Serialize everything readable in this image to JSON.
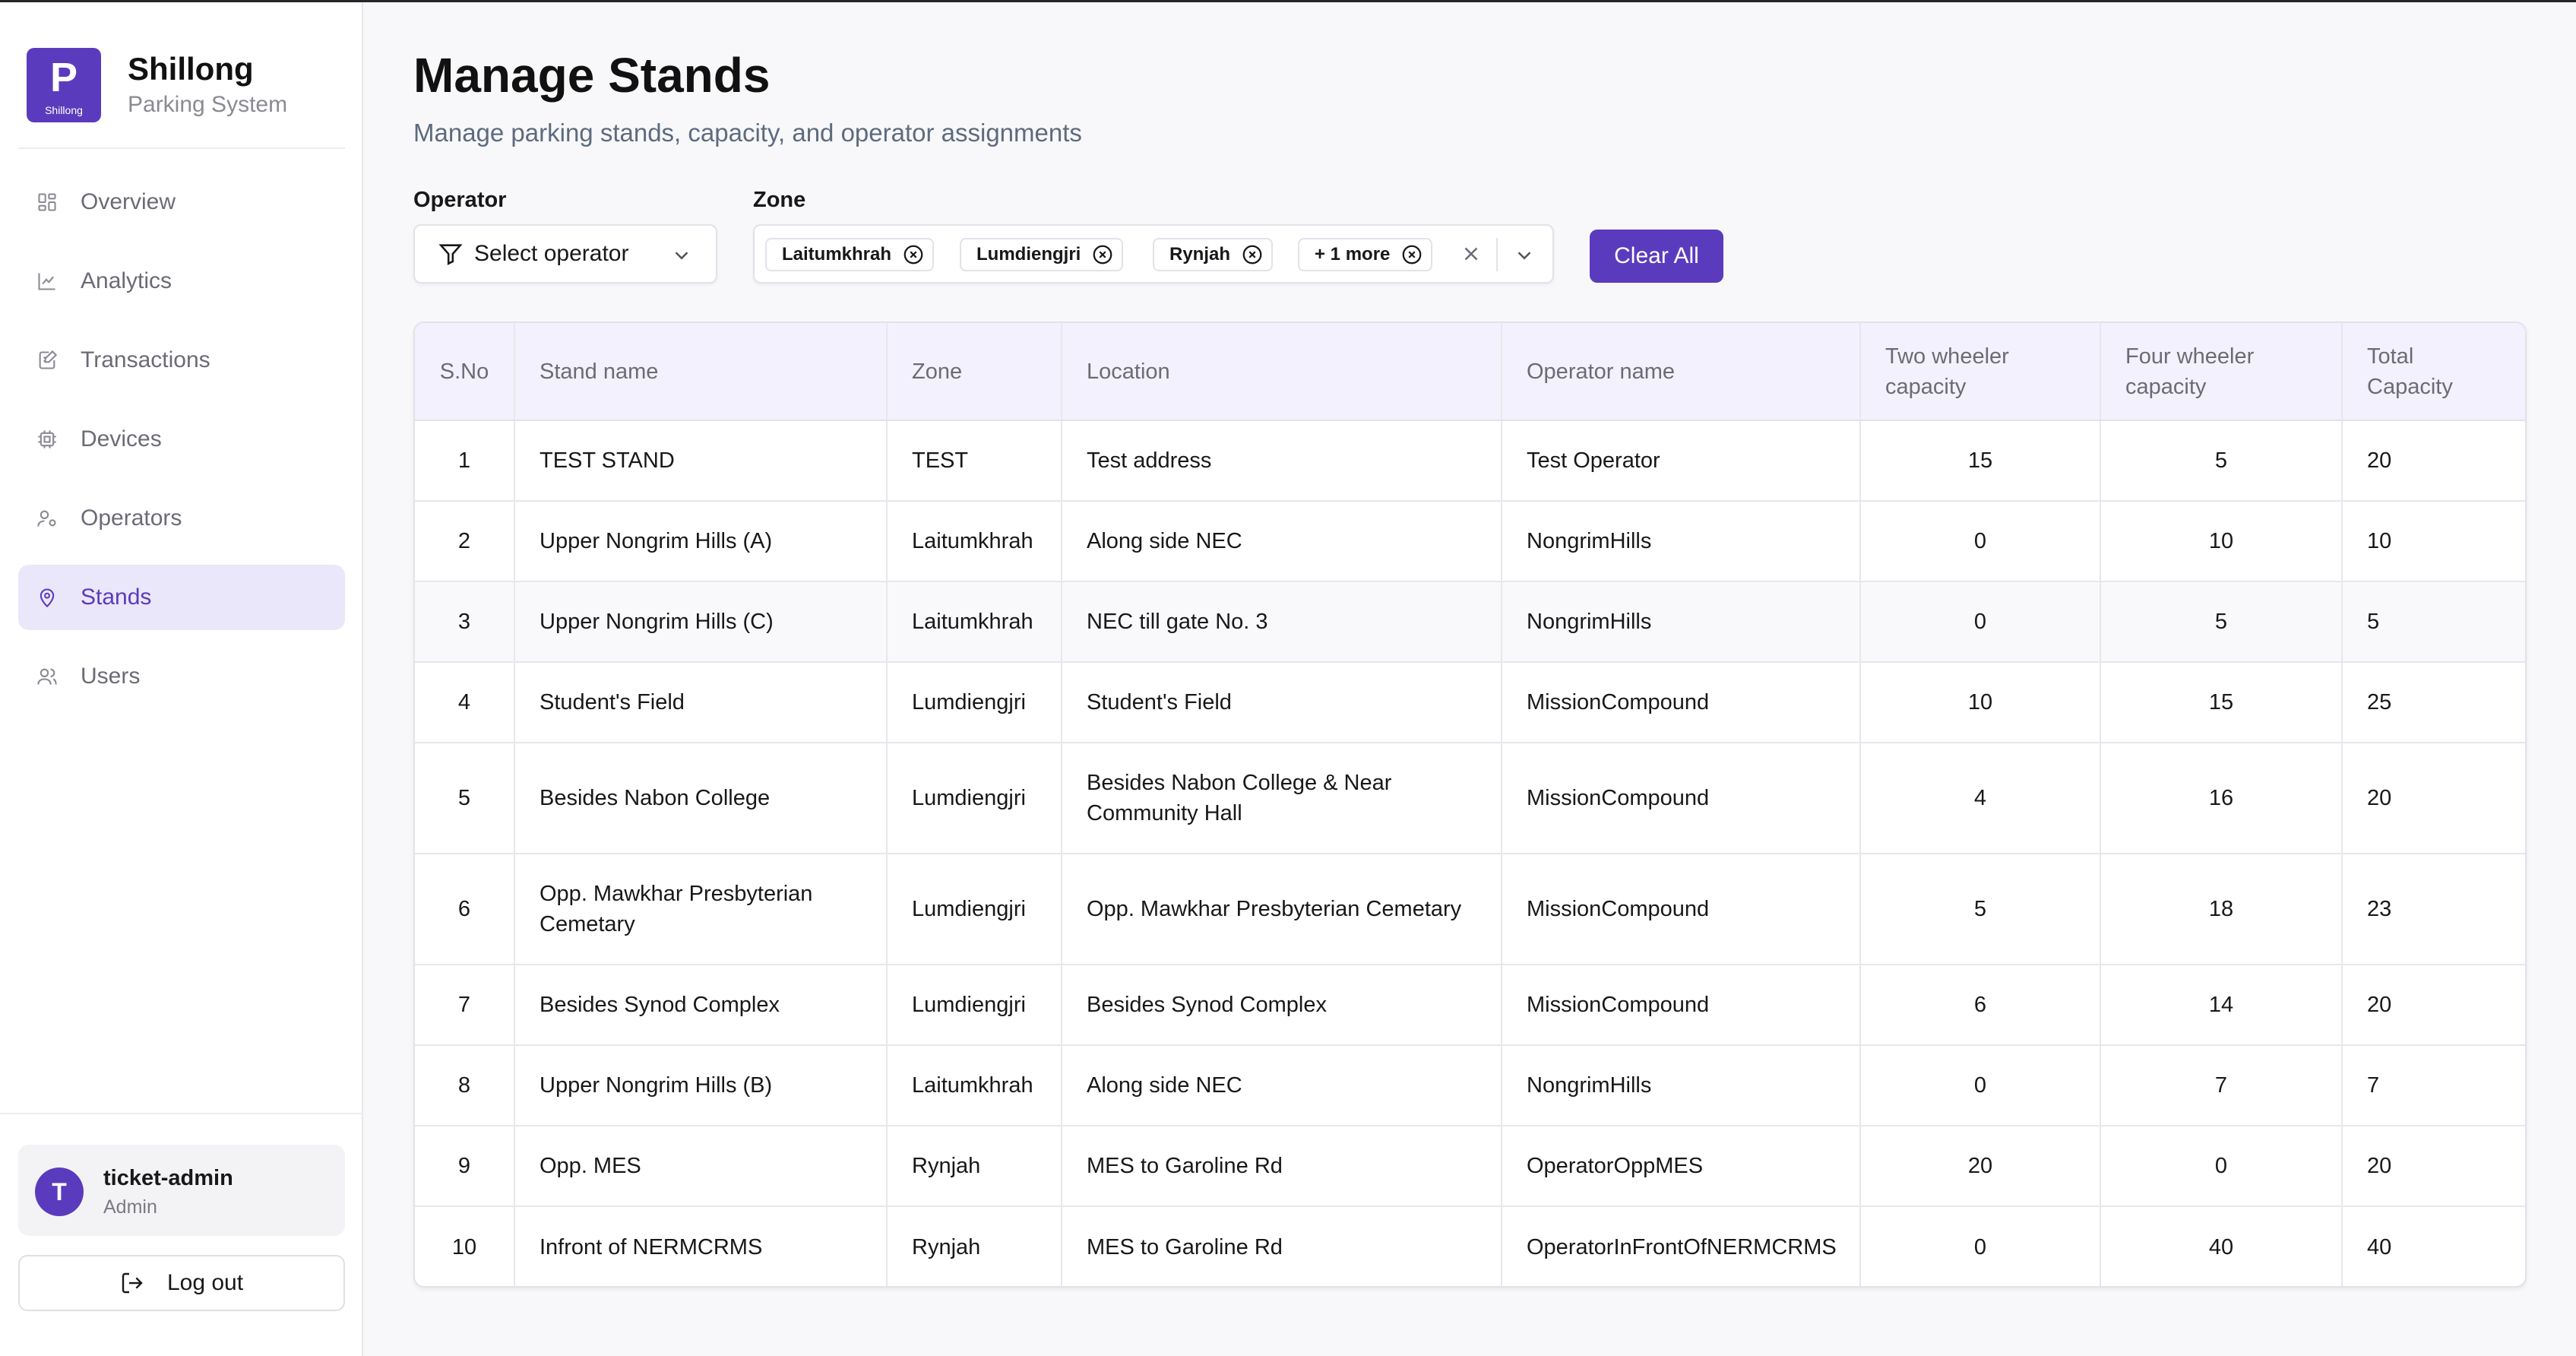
{
  "brand": {
    "logo_letter": "P",
    "logo_sub": "Shillong",
    "title": "Shillong",
    "subtitle": "Parking System"
  },
  "nav": [
    {
      "label": "Overview",
      "icon": "grid-icon",
      "active": false
    },
    {
      "label": "Analytics",
      "icon": "line-chart-icon",
      "active": false
    },
    {
      "label": "Transactions",
      "icon": "document-edit-icon",
      "active": false
    },
    {
      "label": "Devices",
      "icon": "chip-icon",
      "active": false
    },
    {
      "label": "Operators",
      "icon": "user-settings-icon",
      "active": false
    },
    {
      "label": "Stands",
      "icon": "map-pin-icon",
      "active": true
    },
    {
      "label": "Users",
      "icon": "users-icon",
      "active": false
    }
  ],
  "user": {
    "initial": "T",
    "name": "ticket-admin",
    "role": "Admin"
  },
  "logout_label": "Log out",
  "page": {
    "title": "Manage Stands",
    "subtitle": "Manage parking stands, capacity, and operator assignments"
  },
  "filters": {
    "operator_label": "Operator",
    "operator_placeholder": "Select operator",
    "zone_label": "Zone",
    "zone_chips": [
      "Laitumkhrah",
      "Lumdiengjri",
      "Rynjah",
      "+ 1 more"
    ],
    "clear_all": "Clear All"
  },
  "table": {
    "headers": [
      "S.No",
      "Stand name",
      "Zone",
      "Location",
      "Operator name",
      "Two wheeler capacity",
      "Four wheeler capacity",
      "Total Capacity"
    ],
    "rows": [
      [
        "1",
        "TEST STAND",
        "TEST",
        "Test address",
        "Test Operator",
        "15",
        "5",
        "20"
      ],
      [
        "2",
        "Upper Nongrim Hills (A)",
        "Laitumkhrah",
        "Along side NEC",
        "NongrimHills",
        "0",
        "10",
        "10"
      ],
      [
        "3",
        "Upper Nongrim Hills (C)",
        "Laitumkhrah",
        "NEC till gate No. 3",
        "NongrimHills",
        "0",
        "5",
        "5"
      ],
      [
        "4",
        "Student's Field",
        "Lumdiengjri",
        "Student's Field",
        "MissionCompound",
        "10",
        "15",
        "25"
      ],
      [
        "5",
        "Besides Nabon College",
        "Lumdiengjri",
        "Besides Nabon College & Near Community Hall",
        "MissionCompound",
        "4",
        "16",
        "20"
      ],
      [
        "6",
        "Opp. Mawkhar Presbyterian Cemetary",
        "Lumdiengjri",
        "Opp. Mawkhar Presbyterian Cemetary",
        "MissionCompound",
        "5",
        "18",
        "23"
      ],
      [
        "7",
        "Besides Synod Complex",
        "Lumdiengjri",
        "Besides Synod Complex",
        "MissionCompound",
        "6",
        "14",
        "20"
      ],
      [
        "8",
        "Upper Nongrim Hills (B)",
        "Laitumkhrah",
        "Along side NEC",
        "NongrimHills",
        "0",
        "7",
        "7"
      ],
      [
        "9",
        "Opp. MES",
        "Rynjah",
        "MES to Garoline Rd",
        "OperatorOppMES",
        "20",
        "0",
        "20"
      ],
      [
        "10",
        "Infront of NERMCRMS",
        "Rynjah",
        "MES to Garoline Rd",
        "OperatorInFrontOfNERMCRMS",
        "0",
        "40",
        "40"
      ]
    ]
  },
  "colors": {
    "accent": "#5b3bbd",
    "active_nav_bg": "#ebe7fa",
    "header_bg": "#f3f1fd"
  }
}
